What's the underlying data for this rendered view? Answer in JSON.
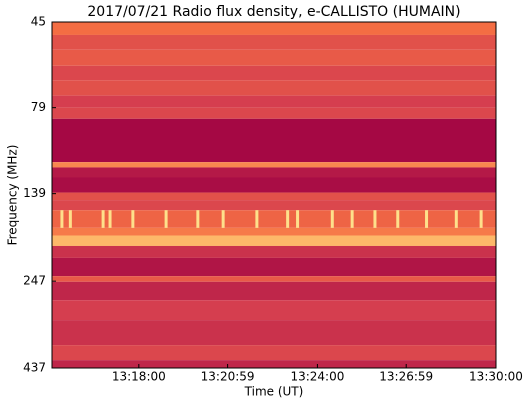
{
  "chart_data": {
    "type": "spectrogram",
    "title": "2017/07/21  Radio flux density, e-CALLISTO (HUMAIN)",
    "x_label": "Time (UT)",
    "y_label": "Frequency (MHz)",
    "xlim": [
      47705,
      48600
    ],
    "xticks": [
      {
        "value": 47880,
        "label": "13:18:00"
      },
      {
        "value": 48059,
        "label": "13:20:59"
      },
      {
        "value": 48240,
        "label": "13:24:00"
      },
      {
        "value": 48419,
        "label": "13:26:59"
      },
      {
        "value": 48600,
        "label": "13:30:00"
      }
    ],
    "ylim": [
      45,
      437
    ],
    "y_log": true,
    "y_inverted": true,
    "yticks": [
      45,
      79,
      139,
      247,
      437
    ],
    "colormap": [
      "#9e0142",
      "#d53e4f",
      "#f46d43",
      "#fdae61",
      "#fee08b"
    ],
    "y_edges": [
      45,
      49,
      54,
      60,
      66,
      73,
      79,
      85,
      113,
      117,
      125,
      138,
      145,
      155,
      174,
      183,
      196,
      212,
      239,
      248,
      280,
      319,
      376,
      415,
      437
    ],
    "z": [
      0.5,
      0.35,
      0.4,
      0.3,
      0.35,
      0.25,
      0.3,
      0.03,
      0.6,
      0.1,
      0.05,
      0.35,
      0.3,
      0.45,
      0.55,
      0.8,
      0.2,
      0.08,
      0.4,
      0.15,
      0.25,
      0.2,
      0.3,
      0.15
    ],
    "bursts": {
      "freq": [
        155,
        174
      ],
      "x": [
        47725,
        47742,
        47808,
        47822,
        47868,
        47935,
        47999,
        48050,
        48118,
        48180,
        48200,
        48270,
        48310,
        48356,
        48402,
        48460,
        48520,
        48570
      ]
    }
  }
}
